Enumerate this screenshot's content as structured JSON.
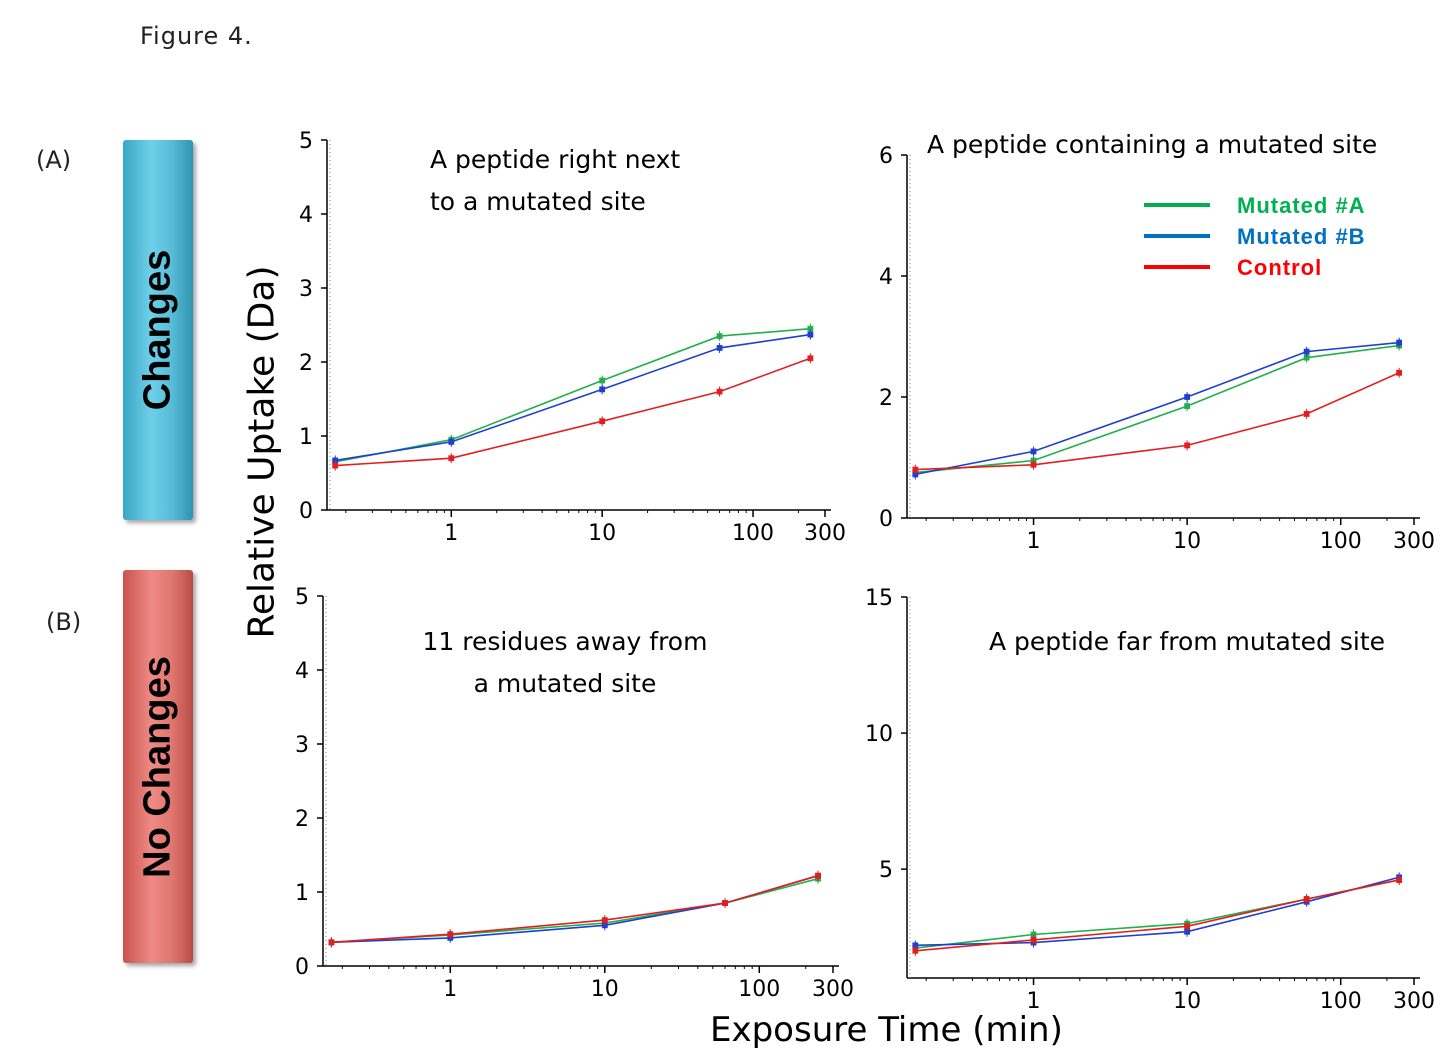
{
  "figure_title": "Figure 4.",
  "panels": {
    "a_label": "(A)",
    "b_label": "(B)",
    "a_bar": "Changes",
    "b_bar": "No Changes"
  },
  "axis": {
    "ylabel": "Relative Uptake (Da)",
    "xlabel": "Exposure Time (min)"
  },
  "colors": {
    "Mutated #A": "#22b04a",
    "Mutated #B": "#1f3fd0",
    "Control": "#e02020"
  },
  "legend": [
    {
      "name": "Mutated #A",
      "color": "#00b050"
    },
    {
      "name": "Mutated #B",
      "color": "#0070c0"
    },
    {
      "name": "Control",
      "color": "#ff0000"
    }
  ],
  "chart_data": [
    {
      "type": "line",
      "title": "A peptide right next to a mutated site",
      "xscale": "log",
      "xlim": [
        0.15,
        300
      ],
      "ylim": [
        0,
        5
      ],
      "x": [
        0.17,
        1,
        10,
        60,
        240
      ],
      "xticks": [
        1,
        10,
        100,
        300
      ],
      "yticks": [
        0,
        1,
        2,
        3,
        4,
        5
      ],
      "series": [
        {
          "name": "Mutated #A",
          "values": [
            0.65,
            0.95,
            1.75,
            2.35,
            2.45
          ]
        },
        {
          "name": "Mutated #B",
          "values": [
            0.67,
            0.92,
            1.63,
            2.19,
            2.37
          ]
        },
        {
          "name": "Control",
          "values": [
            0.6,
            0.7,
            1.2,
            1.6,
            2.05
          ]
        }
      ]
    },
    {
      "type": "line",
      "title": "A peptide containing a mutated site",
      "xscale": "log",
      "xlim": [
        0.15,
        300
      ],
      "ylim": [
        0,
        6
      ],
      "x": [
        0.17,
        1,
        10,
        60,
        240
      ],
      "xticks": [
        1,
        10,
        100,
        300
      ],
      "yticks": [
        0,
        2,
        4,
        6
      ],
      "legend": "top-right",
      "series": [
        {
          "name": "Mutated #A",
          "values": [
            0.75,
            0.95,
            1.85,
            2.65,
            2.85
          ]
        },
        {
          "name": "Mutated #B",
          "values": [
            0.72,
            1.1,
            2.0,
            2.75,
            2.9
          ]
        },
        {
          "name": "Control",
          "values": [
            0.8,
            0.88,
            1.2,
            1.72,
            2.4
          ]
        }
      ]
    },
    {
      "type": "line",
      "title": "11 residues away from a mutated site",
      "xscale": "log",
      "xlim": [
        0.15,
        300
      ],
      "ylim": [
        0,
        5
      ],
      "x": [
        0.17,
        1,
        10,
        60,
        240
      ],
      "xticks": [
        1,
        10,
        100,
        300
      ],
      "yticks": [
        0,
        1,
        2,
        3,
        4,
        5
      ],
      "series": [
        {
          "name": "Mutated #A",
          "values": [
            0.32,
            0.42,
            0.58,
            0.85,
            1.18
          ]
        },
        {
          "name": "Mutated #B",
          "values": [
            0.32,
            0.38,
            0.55,
            0.85,
            1.22
          ]
        },
        {
          "name": "Control",
          "values": [
            0.32,
            0.43,
            0.62,
            0.85,
            1.22
          ]
        }
      ]
    },
    {
      "type": "line",
      "title": "A peptide far from mutated site",
      "xscale": "log",
      "xlim": [
        0.15,
        300
      ],
      "ylim": [
        1,
        15
      ],
      "x": [
        0.17,
        1,
        10,
        60,
        240
      ],
      "xticks": [
        1,
        10,
        100,
        300
      ],
      "yticks": [
        5,
        10,
        15
      ],
      "series": [
        {
          "name": "Mutated #A",
          "values": [
            2.1,
            2.6,
            3.0,
            3.9,
            4.6
          ]
        },
        {
          "name": "Mutated #B",
          "values": [
            2.2,
            2.3,
            2.7,
            3.8,
            4.7
          ]
        },
        {
          "name": "Control",
          "values": [
            2.0,
            2.4,
            2.9,
            3.9,
            4.6
          ]
        }
      ]
    }
  ]
}
